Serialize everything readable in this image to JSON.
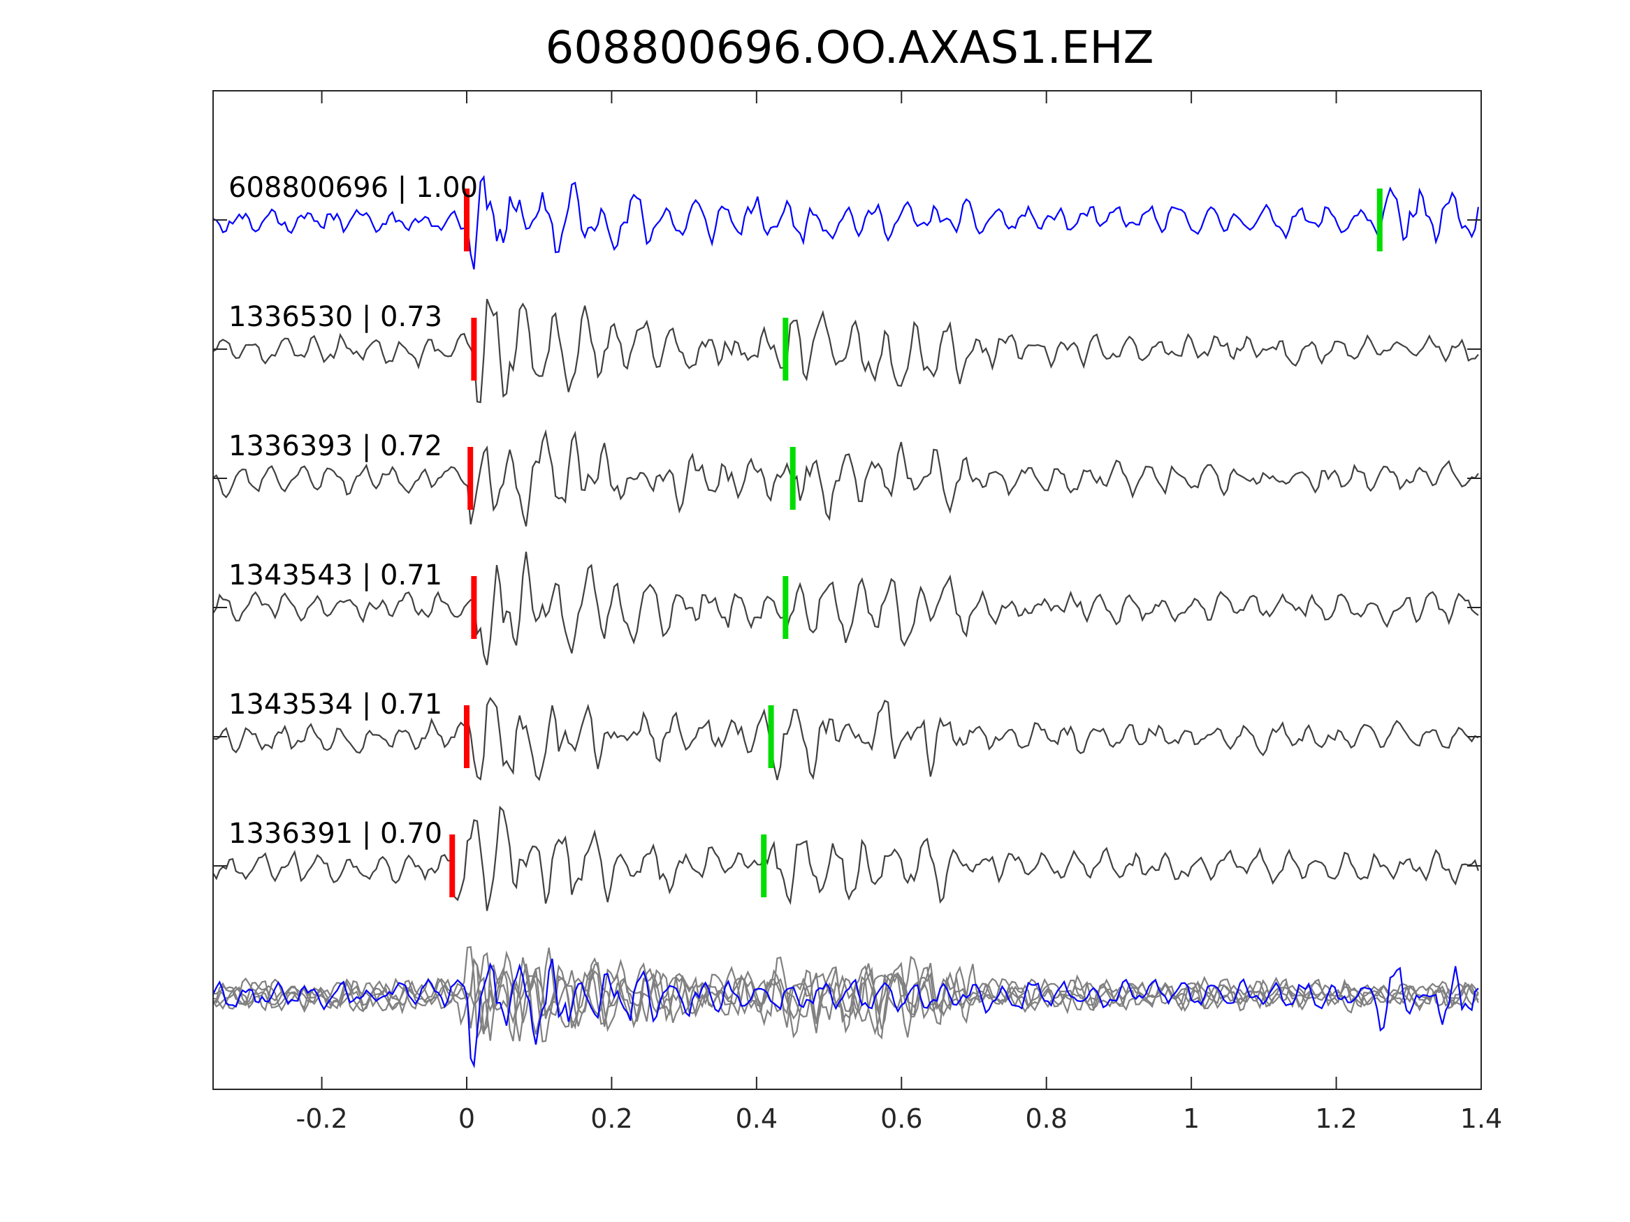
{
  "chart_data": {
    "type": "line",
    "title": "608800696.OO.AXAS1.EHZ",
    "xlabel": "",
    "ylabel": "",
    "xlim": [
      -0.35,
      1.4
    ],
    "xticks": [
      "-0.2",
      "0",
      "0.2",
      "0.4",
      "0.6",
      "0.8",
      "1",
      "1.2",
      "1.4"
    ],
    "xtick_values": [
      -0.2,
      0,
      0.2,
      0.4,
      0.6,
      0.8,
      1,
      1.2,
      1.4
    ],
    "grid": false,
    "legend": "none",
    "colors": {
      "template": "#0000ff",
      "neighbor": "#404040",
      "stack": "#808080",
      "p_pick": "#ff0000",
      "s_pick": "#00dd00",
      "axes": "#262626"
    },
    "series": [
      {
        "id": "608800696",
        "label": "608800696 | 1.00",
        "color": "#0000ff",
        "p_time": 0.0,
        "s_time": 1.26,
        "seed": 11
      },
      {
        "id": "1336530",
        "label": "1336530 | 0.73",
        "color": "#404040",
        "p_time": 0.01,
        "s_time": 0.44,
        "seed": 23
      },
      {
        "id": "1336393",
        "label": "1336393 | 0.72",
        "color": "#404040",
        "p_time": 0.005,
        "s_time": 0.45,
        "seed": 37
      },
      {
        "id": "1343543",
        "label": "1343543 | 0.71",
        "color": "#404040",
        "p_time": 0.01,
        "s_time": 0.44,
        "seed": 41
      },
      {
        "id": "1343534",
        "label": "1343534 | 0.71",
        "color": "#404040",
        "p_time": 0.0,
        "s_time": 0.42,
        "seed": 53
      },
      {
        "id": "1336391",
        "label": "1336391 | 0.70",
        "color": "#404040",
        "p_time": -0.02,
        "s_time": 0.41,
        "seed": 67
      }
    ]
  }
}
